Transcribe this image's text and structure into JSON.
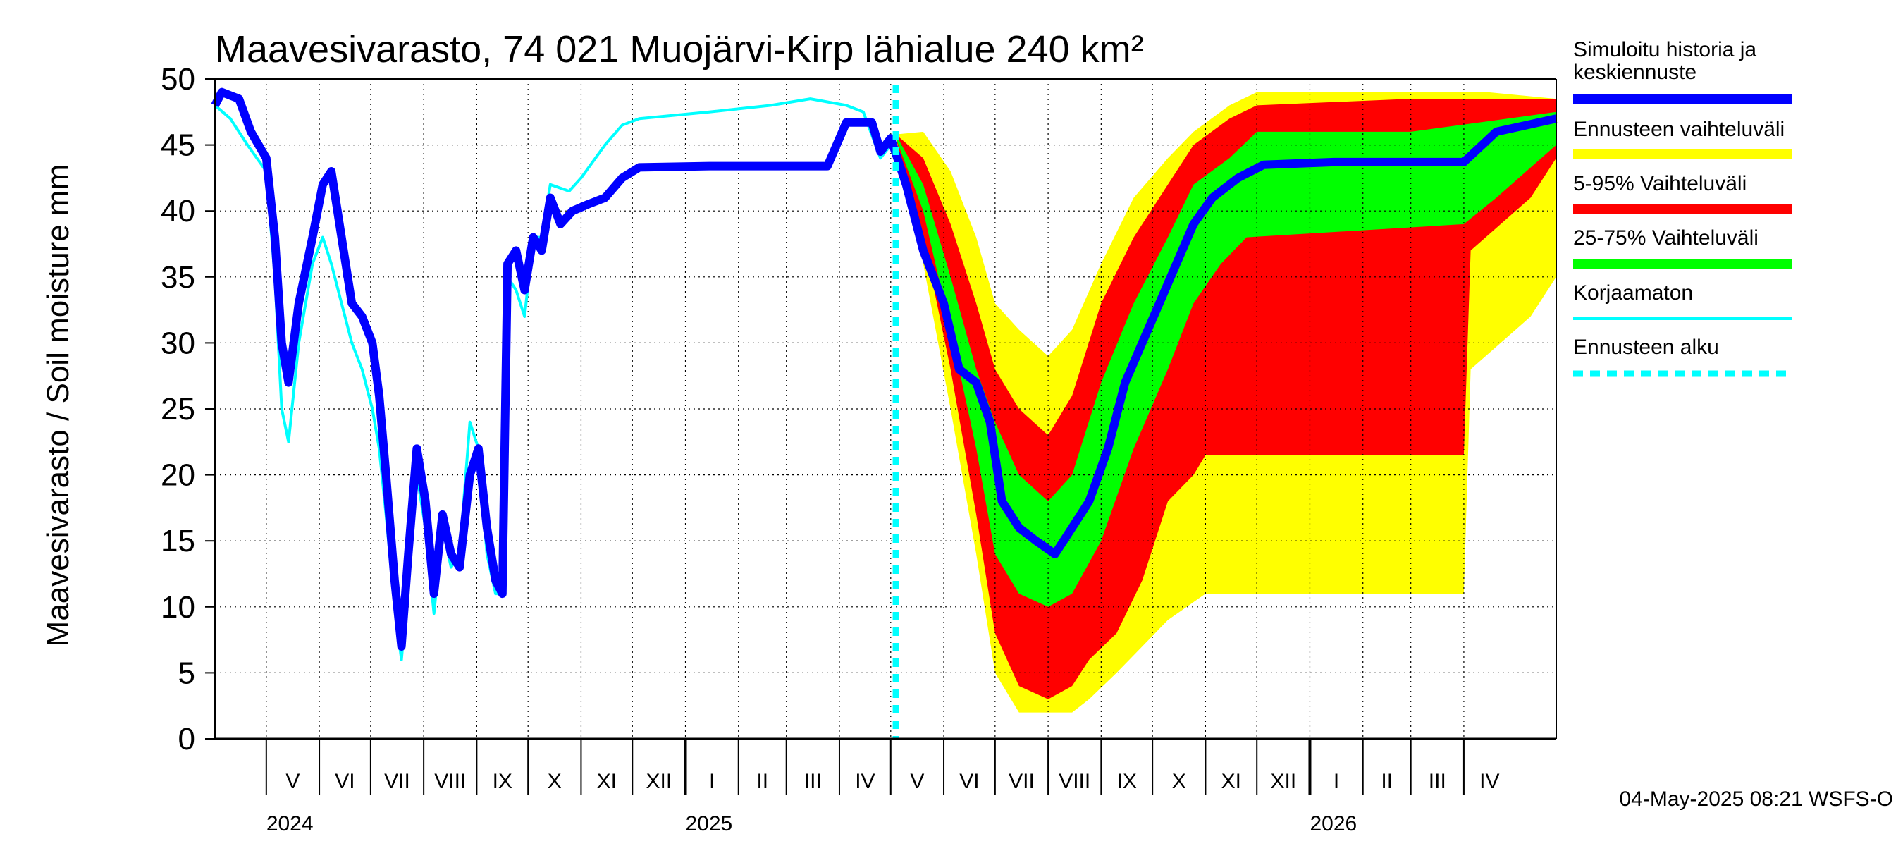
{
  "chart_data": {
    "type": "line",
    "title": "Maavesivarasto, 74 021 Muojärvi-Kirp lähialue 240 km²",
    "ylabel": "Maavesivarasto / Soil moisture   mm",
    "ylim": [
      0,
      50
    ],
    "yticks": [
      "0",
      "5",
      "10",
      "15",
      "20",
      "25",
      "30",
      "35",
      "40",
      "45",
      "50"
    ],
    "x_range": [
      "2024-04-01",
      "2026-05-25"
    ],
    "grid": true,
    "forecast_start": "2025-05-04",
    "months": [
      {
        "label": "V",
        "start": "2024-05-01"
      },
      {
        "label": "VI",
        "start": "2024-06-01"
      },
      {
        "label": "VII",
        "start": "2024-07-01"
      },
      {
        "label": "VIII",
        "start": "2024-08-01"
      },
      {
        "label": "IX",
        "start": "2024-09-01"
      },
      {
        "label": "X",
        "start": "2024-10-01"
      },
      {
        "label": "XI",
        "start": "2024-11-01"
      },
      {
        "label": "XII",
        "start": "2024-12-01"
      },
      {
        "label": "I",
        "start": "2025-01-01"
      },
      {
        "label": "II",
        "start": "2025-02-01"
      },
      {
        "label": "III",
        "start": "2025-03-01"
      },
      {
        "label": "IV",
        "start": "2025-04-01"
      },
      {
        "label": "V",
        "start": "2025-05-01"
      },
      {
        "label": "VI",
        "start": "2025-06-01"
      },
      {
        "label": "VII",
        "start": "2025-07-01"
      },
      {
        "label": "VIII",
        "start": "2025-08-01"
      },
      {
        "label": "IX",
        "start": "2025-09-01"
      },
      {
        "label": "X",
        "start": "2025-10-01"
      },
      {
        "label": "XI",
        "start": "2025-11-01"
      },
      {
        "label": "XII",
        "start": "2025-12-01"
      },
      {
        "label": "I",
        "start": "2026-01-01"
      },
      {
        "label": "II",
        "start": "2026-02-01"
      },
      {
        "label": "III",
        "start": "2026-03-01"
      },
      {
        "label": "IV",
        "start": "2026-04-01"
      }
    ],
    "years": [
      {
        "label": "2024",
        "at": "2024-05-01"
      },
      {
        "label": "2025",
        "at": "2025-01-01"
      },
      {
        "label": "2026",
        "at": "2026-01-01"
      }
    ],
    "year_boundaries": [
      "2025-01-01",
      "2026-01-01"
    ],
    "bands": [
      {
        "name": "Ennusteen vaihteluväli",
        "color": "#ffff00",
        "upper": [
          [
            "2025-05-04",
            45.8
          ],
          [
            "2025-05-20",
            46
          ],
          [
            "2025-06-05",
            43
          ],
          [
            "2025-06-20",
            38
          ],
          [
            "2025-07-01",
            33
          ],
          [
            "2025-07-15",
            31
          ],
          [
            "2025-08-01",
            29
          ],
          [
            "2025-08-15",
            31
          ],
          [
            "2025-09-01",
            36
          ],
          [
            "2025-09-20",
            41
          ],
          [
            "2025-10-10",
            44
          ],
          [
            "2025-10-25",
            46
          ],
          [
            "2025-11-15",
            48
          ],
          [
            "2025-12-01",
            49
          ],
          [
            "2026-03-01",
            49
          ],
          [
            "2026-04-15",
            49
          ],
          [
            "2026-05-25",
            48.5
          ]
        ],
        "lower": [
          [
            "2025-05-04",
            45.5
          ],
          [
            "2025-05-20",
            36
          ],
          [
            "2025-06-05",
            25
          ],
          [
            "2025-06-20",
            14
          ],
          [
            "2025-07-01",
            5
          ],
          [
            "2025-07-15",
            2
          ],
          [
            "2025-08-01",
            2
          ],
          [
            "2025-08-15",
            2
          ],
          [
            "2025-08-25",
            3
          ],
          [
            "2025-09-10",
            5
          ],
          [
            "2025-09-25",
            7
          ],
          [
            "2025-10-10",
            9
          ],
          [
            "2025-11-01",
            11
          ],
          [
            "2026-04-01",
            11
          ],
          [
            "2026-04-05",
            28
          ],
          [
            "2026-05-10",
            32
          ],
          [
            "2026-05-25",
            35
          ]
        ]
      },
      {
        "name": "5-95% Vaihteluväli",
        "color": "#ff0000",
        "upper": [
          [
            "2025-05-04",
            45.8
          ],
          [
            "2025-05-20",
            44
          ],
          [
            "2025-06-05",
            39
          ],
          [
            "2025-06-20",
            33
          ],
          [
            "2025-07-01",
            28
          ],
          [
            "2025-07-15",
            25
          ],
          [
            "2025-08-01",
            23
          ],
          [
            "2025-08-15",
            26
          ],
          [
            "2025-09-01",
            33
          ],
          [
            "2025-09-20",
            38
          ],
          [
            "2025-10-10",
            42
          ],
          [
            "2025-10-25",
            45
          ],
          [
            "2025-11-15",
            47
          ],
          [
            "2025-12-01",
            48
          ],
          [
            "2026-03-01",
            48.5
          ],
          [
            "2026-05-25",
            48.5
          ]
        ],
        "lower": [
          [
            "2025-05-04",
            45.5
          ],
          [
            "2025-05-20",
            38
          ],
          [
            "2025-06-05",
            28
          ],
          [
            "2025-06-20",
            17
          ],
          [
            "2025-07-01",
            8
          ],
          [
            "2025-07-15",
            4
          ],
          [
            "2025-08-01",
            3
          ],
          [
            "2025-08-15",
            4
          ],
          [
            "2025-08-25",
            6
          ],
          [
            "2025-09-10",
            8
          ],
          [
            "2025-09-25",
            12
          ],
          [
            "2025-10-10",
            18
          ],
          [
            "2025-10-25",
            20
          ],
          [
            "2025-11-01",
            21.5
          ],
          [
            "2026-04-01",
            21.5
          ],
          [
            "2026-04-05",
            37
          ],
          [
            "2026-05-10",
            41
          ],
          [
            "2026-05-25",
            44
          ]
        ]
      },
      {
        "name": "25-75% Vaihteluväli",
        "color": "#00ff00",
        "upper": [
          [
            "2025-05-04",
            45.8
          ],
          [
            "2025-05-20",
            42
          ],
          [
            "2025-06-05",
            35
          ],
          [
            "2025-06-20",
            28
          ],
          [
            "2025-07-01",
            24
          ],
          [
            "2025-07-15",
            20
          ],
          [
            "2025-08-01",
            18
          ],
          [
            "2025-08-15",
            20
          ],
          [
            "2025-09-01",
            27
          ],
          [
            "2025-09-20",
            33
          ],
          [
            "2025-10-10",
            38
          ],
          [
            "2025-10-25",
            42
          ],
          [
            "2025-11-15",
            44
          ],
          [
            "2025-12-01",
            46
          ],
          [
            "2026-03-01",
            46
          ],
          [
            "2026-05-25",
            47.5
          ]
        ],
        "lower": [
          [
            "2025-05-04",
            45.5
          ],
          [
            "2025-05-20",
            40
          ],
          [
            "2025-06-05",
            31
          ],
          [
            "2025-06-20",
            22
          ],
          [
            "2025-07-01",
            14
          ],
          [
            "2025-07-15",
            11
          ],
          [
            "2025-08-01",
            10
          ],
          [
            "2025-08-15",
            11
          ],
          [
            "2025-09-01",
            15
          ],
          [
            "2025-09-20",
            22
          ],
          [
            "2025-10-10",
            28
          ],
          [
            "2025-10-25",
            33
          ],
          [
            "2025-11-10",
            36
          ],
          [
            "2025-11-25",
            38
          ],
          [
            "2026-04-01",
            39
          ],
          [
            "2026-04-20",
            41
          ],
          [
            "2026-05-25",
            45
          ]
        ]
      }
    ],
    "series": [
      {
        "name": "Simuloitu historia ja keskiennuste",
        "color": "#0000ff",
        "values": [
          [
            "2024-04-01",
            48
          ],
          [
            "2024-04-05",
            49
          ],
          [
            "2024-04-15",
            48.5
          ],
          [
            "2024-04-22",
            46
          ],
          [
            "2024-05-01",
            44
          ],
          [
            "2024-05-06",
            38
          ],
          [
            "2024-05-10",
            30
          ],
          [
            "2024-05-14",
            27
          ],
          [
            "2024-05-20",
            33
          ],
          [
            "2024-05-28",
            38
          ],
          [
            "2024-06-03",
            42
          ],
          [
            "2024-06-08",
            43
          ],
          [
            "2024-06-14",
            38
          ],
          [
            "2024-06-20",
            33
          ],
          [
            "2024-06-26",
            32
          ],
          [
            "2024-07-02",
            30
          ],
          [
            "2024-07-06",
            26
          ],
          [
            "2024-07-10",
            20
          ],
          [
            "2024-07-15",
            12
          ],
          [
            "2024-07-19",
            7
          ],
          [
            "2024-07-23",
            14
          ],
          [
            "2024-07-28",
            22
          ],
          [
            "2024-08-02",
            18
          ],
          [
            "2024-08-07",
            11
          ],
          [
            "2024-08-12",
            17
          ],
          [
            "2024-08-17",
            14
          ],
          [
            "2024-08-22",
            13
          ],
          [
            "2024-08-28",
            20
          ],
          [
            "2024-09-02",
            22
          ],
          [
            "2024-09-07",
            16
          ],
          [
            "2024-09-12",
            12
          ],
          [
            "2024-09-16",
            11
          ],
          [
            "2024-09-19",
            36
          ],
          [
            "2024-09-24",
            37
          ],
          [
            "2024-09-29",
            34
          ],
          [
            "2024-10-04",
            38
          ],
          [
            "2024-10-09",
            37
          ],
          [
            "2024-10-14",
            41
          ],
          [
            "2024-10-20",
            39
          ],
          [
            "2024-10-27",
            40
          ],
          [
            "2024-11-05",
            40.5
          ],
          [
            "2024-11-15",
            41
          ],
          [
            "2024-11-25",
            42.5
          ],
          [
            "2024-12-05",
            43.3
          ],
          [
            "2025-01-15",
            43.4
          ],
          [
            "2025-03-01",
            43.4
          ],
          [
            "2025-03-25",
            43.4
          ],
          [
            "2025-04-05",
            46.7
          ],
          [
            "2025-04-20",
            46.7
          ],
          [
            "2025-04-25",
            44.5
          ],
          [
            "2025-05-01",
            45.5
          ],
          [
            "2025-05-10",
            42
          ],
          [
            "2025-05-20",
            37
          ],
          [
            "2025-06-01",
            33
          ],
          [
            "2025-06-10",
            28
          ],
          [
            "2025-06-20",
            27
          ],
          [
            "2025-06-28",
            24
          ],
          [
            "2025-07-05",
            18
          ],
          [
            "2025-07-15",
            16
          ],
          [
            "2025-07-25",
            15
          ],
          [
            "2025-08-05",
            14
          ],
          [
            "2025-08-15",
            16
          ],
          [
            "2025-08-25",
            18
          ],
          [
            "2025-09-05",
            22
          ],
          [
            "2025-09-15",
            27
          ],
          [
            "2025-09-25",
            30
          ],
          [
            "2025-10-05",
            33
          ],
          [
            "2025-10-15",
            36
          ],
          [
            "2025-10-25",
            39
          ],
          [
            "2025-11-05",
            41
          ],
          [
            "2025-11-20",
            42.5
          ],
          [
            "2025-12-05",
            43.5
          ],
          [
            "2026-01-15",
            43.7
          ],
          [
            "2026-04-01",
            43.7
          ],
          [
            "2026-04-20",
            46
          ],
          [
            "2026-05-25",
            47
          ]
        ]
      },
      {
        "name": "Korjaamaton",
        "color": "#00ffff",
        "values": [
          [
            "2024-04-01",
            48
          ],
          [
            "2024-04-10",
            47
          ],
          [
            "2024-04-20",
            45
          ],
          [
            "2024-05-01",
            43
          ],
          [
            "2024-05-06",
            35
          ],
          [
            "2024-05-10",
            25
          ],
          [
            "2024-05-14",
            22.5
          ],
          [
            "2024-05-20",
            30
          ],
          [
            "2024-05-28",
            36
          ],
          [
            "2024-06-03",
            38
          ],
          [
            "2024-06-08",
            36
          ],
          [
            "2024-06-14",
            33
          ],
          [
            "2024-06-20",
            30
          ],
          [
            "2024-06-26",
            28
          ],
          [
            "2024-07-02",
            25
          ],
          [
            "2024-07-06",
            22
          ],
          [
            "2024-07-10",
            17
          ],
          [
            "2024-07-15",
            10
          ],
          [
            "2024-07-19",
            6
          ],
          [
            "2024-07-23",
            12
          ],
          [
            "2024-07-28",
            20
          ],
          [
            "2024-08-02",
            16
          ],
          [
            "2024-08-07",
            9.5
          ],
          [
            "2024-08-12",
            16
          ],
          [
            "2024-08-17",
            13
          ],
          [
            "2024-08-22",
            14
          ],
          [
            "2024-08-28",
            24
          ],
          [
            "2024-09-02",
            22
          ],
          [
            "2024-09-07",
            14
          ],
          [
            "2024-09-12",
            11
          ],
          [
            "2024-09-16",
            11
          ],
          [
            "2024-09-19",
            35
          ],
          [
            "2024-09-24",
            34
          ],
          [
            "2024-09-29",
            32
          ],
          [
            "2024-10-04",
            38
          ],
          [
            "2024-10-09",
            38
          ],
          [
            "2024-10-14",
            42
          ],
          [
            "2024-10-25",
            41.5
          ],
          [
            "2024-11-01",
            42.5
          ],
          [
            "2024-11-15",
            45
          ],
          [
            "2024-11-25",
            46.5
          ],
          [
            "2024-12-05",
            47
          ],
          [
            "2025-01-15",
            47.5
          ],
          [
            "2025-02-20",
            48
          ],
          [
            "2025-03-15",
            48.5
          ],
          [
            "2025-04-05",
            48
          ],
          [
            "2025-04-15",
            47.5
          ],
          [
            "2025-04-25",
            44
          ],
          [
            "2025-05-04",
            45.5
          ]
        ]
      }
    ],
    "legend": [
      {
        "label": "Simuloitu historia ja keskiennuste",
        "color": "#0000ff",
        "style": "line"
      },
      {
        "label": "Ennusteen vaihteluväli",
        "color": "#ffff00",
        "style": "line"
      },
      {
        "label": "5-95% Vaihteluväli",
        "color": "#ff0000",
        "style": "line"
      },
      {
        "label": "25-75% Vaihteluväli",
        "color": "#00ff00",
        "style": "line"
      },
      {
        "label": "Korjaamaton",
        "color": "#00ffff",
        "style": "thin"
      },
      {
        "label": "Ennusteen alku",
        "color": "#00ffff",
        "style": "dashed"
      }
    ],
    "legend_position": "right"
  },
  "footer": "04-May-2025 08:21 WSFS-O"
}
